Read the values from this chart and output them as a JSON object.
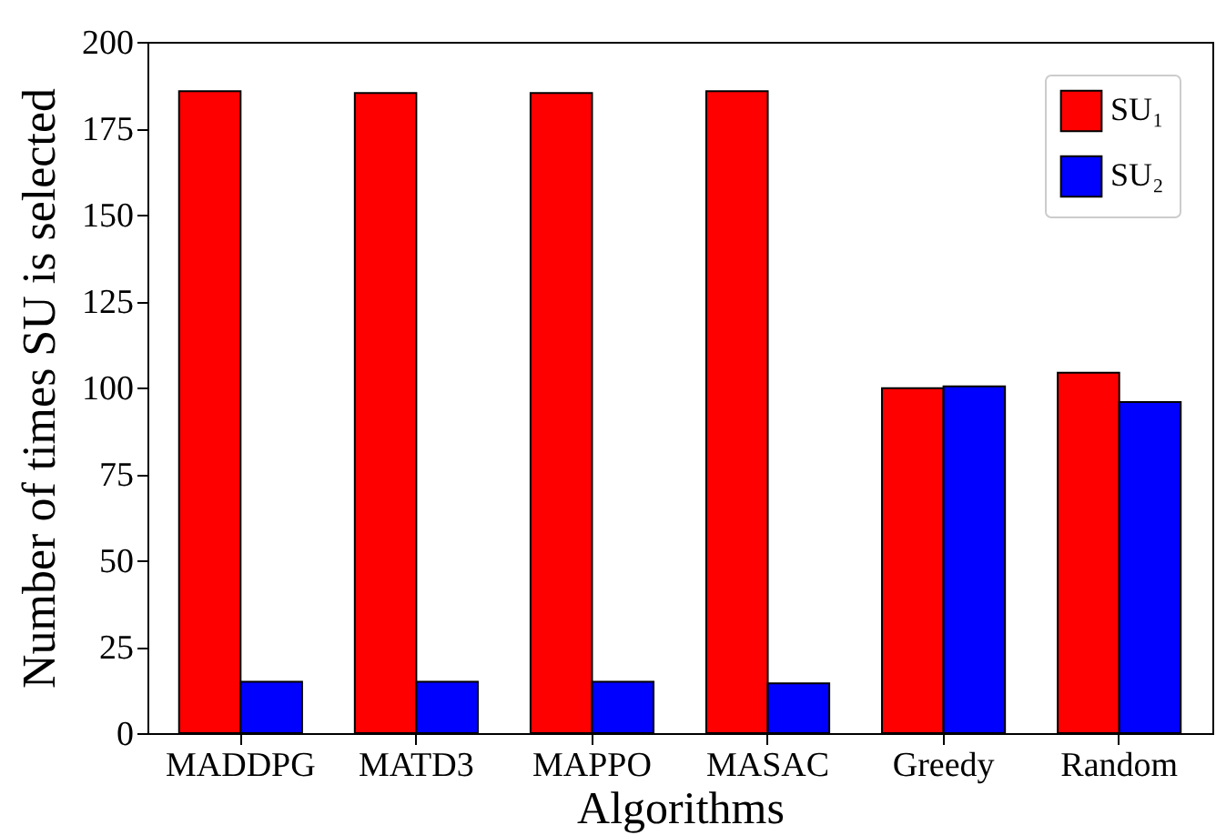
{
  "chart_data": {
    "type": "bar",
    "xlabel": "Algorithms",
    "ylabel": "Number of times SU is selected",
    "categories": [
      "MADDPG",
      "MATD3",
      "MAPPO",
      "MASAC",
      "Greedy",
      "Random"
    ],
    "series": [
      {
        "name": "SU₁",
        "color": "#ff0000",
        "values": [
          185.7,
          185.2,
          185.2,
          185.7,
          99.8,
          104.3
        ]
      },
      {
        "name": "SU₂",
        "color": "#0000ff",
        "values": [
          14.9,
          14.9,
          14.9,
          14.4,
          100.3,
          95.8
        ]
      }
    ],
    "ylim": [
      0,
      200
    ],
    "yticks": [
      0,
      25,
      50,
      75,
      100,
      125,
      150,
      175,
      200
    ],
    "grid": false,
    "legend": "top right"
  }
}
